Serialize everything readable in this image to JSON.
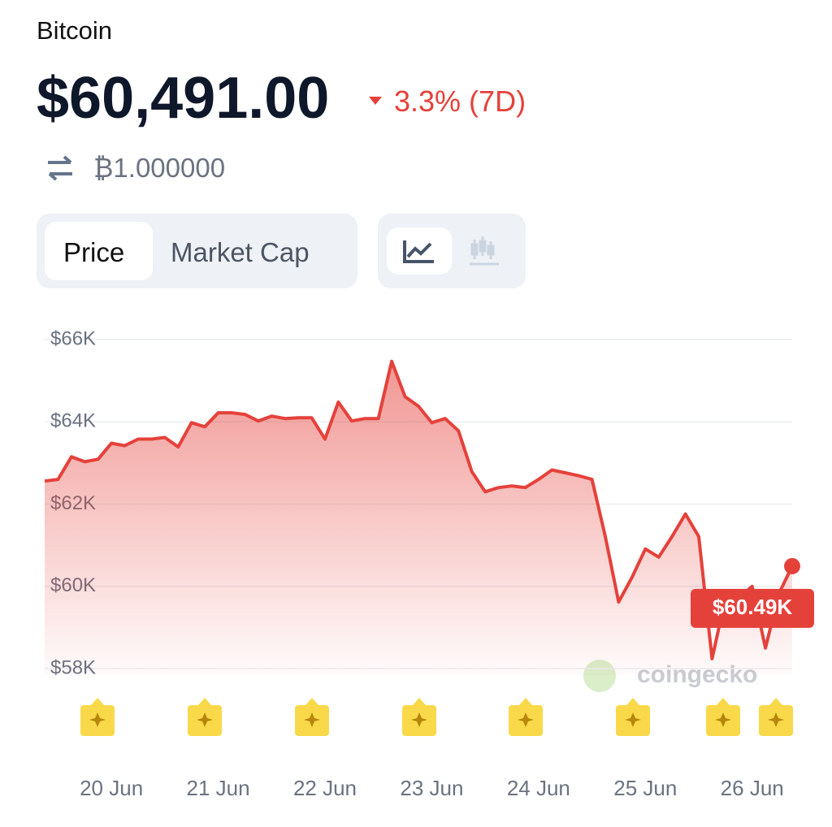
{
  "header": {
    "title": "Bitcoin",
    "price": "$60,491.00",
    "change": "3.3% (7D)",
    "btc_amount": "₿1.000000"
  },
  "tabs": [
    "Price",
    "Market Cap"
  ],
  "chart_data": {
    "type": "area",
    "color": "#e5413b",
    "categories": [
      null,
      null,
      null,
      null,
      null,
      "20 Jun",
      null,
      null,
      null,
      null,
      null,
      null,
      null,
      "21 Jun",
      null,
      null,
      null,
      null,
      null,
      null,
      null,
      "22 Jun",
      null,
      null,
      null,
      null,
      null,
      null,
      null,
      "23 Jun",
      null,
      null,
      null,
      null,
      null,
      null,
      null,
      "24 Jun",
      null,
      null,
      null,
      null,
      null,
      null,
      null,
      "25 Jun",
      null,
      null,
      null,
      null,
      null,
      null,
      null,
      "26 Jun",
      null,
      null,
      null
    ],
    "values": [
      62560,
      62600,
      63150,
      63030,
      63090,
      63480,
      63420,
      63580,
      63580,
      63620,
      63390,
      63980,
      63880,
      64220,
      64220,
      64180,
      64020,
      64140,
      64080,
      64100,
      64100,
      63580,
      64480,
      64020,
      64080,
      64080,
      65470,
      64610,
      64380,
      63980,
      64080,
      63780,
      62790,
      62300,
      62400,
      62440,
      62400,
      62600,
      62830,
      62760,
      62690,
      62600,
      61210,
      59620,
      60220,
      60910,
      60710,
      61210,
      61760,
      61210,
      58240,
      59720,
      59720,
      60000,
      58500,
      59820,
      60491
    ],
    "ylim": [
      58000,
      66000
    ],
    "yticks": [
      {
        "value": 66000,
        "label": "$66K"
      },
      {
        "value": 64000,
        "label": "$64K"
      },
      {
        "value": 62000,
        "label": "$62K"
      },
      {
        "value": 60000,
        "label": "$60K"
      },
      {
        "value": 58000,
        "label": "$58K"
      }
    ],
    "grid": true,
    "annotation": "$60.49K",
    "watermark": "coingecko"
  }
}
